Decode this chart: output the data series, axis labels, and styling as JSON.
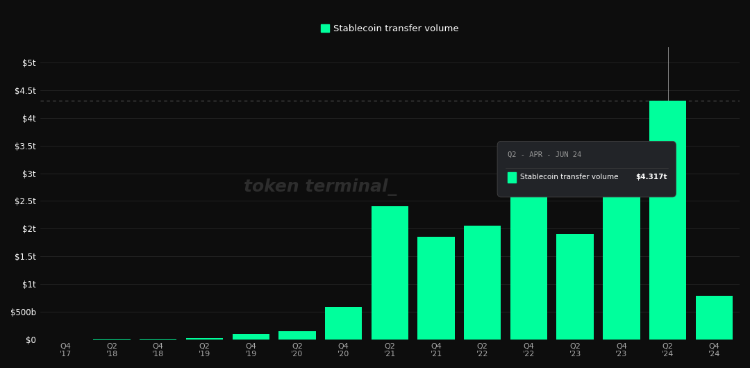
{
  "title": "Stablecoin transfer volume",
  "bar_color": "#00FF9C",
  "bg_color": "#0d0d0d",
  "grid_color": "#2a2a2a",
  "text_color": "#aaaaaa",
  "watermark": "token terminal_",
  "tooltip_bg": "#222428",
  "tooltip_title": "Q2 - APR - JUN 24",
  "tooltip_label": "Stablecoin transfer volume",
  "tooltip_value": "$4.317t",
  "yticks": [
    0,
    0.5,
    1.0,
    1.5,
    2.0,
    2.5,
    3.0,
    3.5,
    4.0,
    4.5,
    5.0
  ],
  "ylim": [
    0,
    5.3
  ],
  "dashed_line_y": 4.317,
  "bar_labels": [
    "Q4\n'17",
    "Q2\n'18",
    "Q4\n'18",
    "Q2\n'19",
    "Q4\n'19",
    "Q2\n'20",
    "Q4\n'20",
    "Q2\n'21",
    "Q4\n'21",
    "Q2\n'22",
    "Q4\n'22",
    "Q2\n'23",
    "Q4\n'23",
    "Q2\n'24"
  ],
  "bar_values": [
    0.001,
    0.002,
    0.005,
    0.02,
    0.09,
    0.15,
    0.58,
    2.4,
    1.85,
    2.05,
    2.9,
    1.9,
    3.2,
    4.317
  ],
  "highlight_bar_index": 13,
  "ytick_labels": [
    "$0",
    "$500b",
    "$1t",
    "$1.5t",
    "$2t",
    "$2.5t",
    "$3t",
    "$3.5t",
    "$4t",
    "$4.5t",
    "$5t"
  ],
  "last_bar_value": 0.78
}
